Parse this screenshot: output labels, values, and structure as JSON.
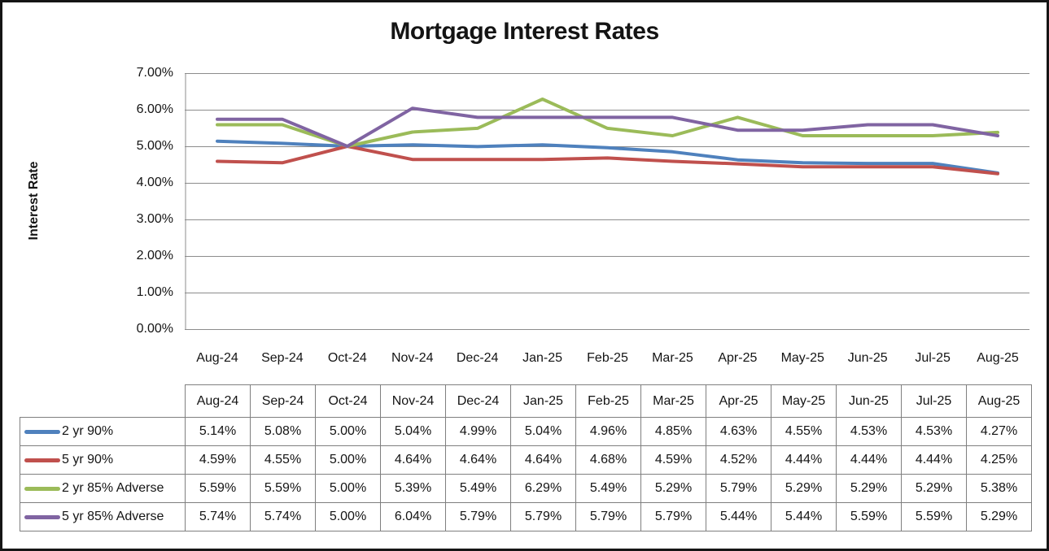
{
  "title": "Mortgage Interest Rates",
  "y_axis_title": "Interest Rate",
  "chart_data": {
    "type": "line",
    "title": "Mortgage Interest Rates",
    "xlabel": "",
    "ylabel": "Interest Rate",
    "ylim": [
      0,
      7
    ],
    "grid": true,
    "legend_position": "table-left-column",
    "value_format": "0.00%",
    "y_ticks": [
      "7.00%",
      "6.00%",
      "5.00%",
      "4.00%",
      "3.00%",
      "2.00%",
      "1.00%",
      "0.00%"
    ],
    "categories": [
      "Aug-24",
      "Sep-24",
      "Oct-24",
      "Nov-24",
      "Dec-24",
      "Jan-25",
      "Feb-25",
      "Mar-25",
      "Apr-25",
      "May-25",
      "Jun-25",
      "Jul-25",
      "Aug-25"
    ],
    "series": [
      {
        "name": "2 yr 90%",
        "color": "#4F81BD",
        "values": [
          5.14,
          5.08,
          5.0,
          5.04,
          4.99,
          5.04,
          4.96,
          4.85,
          4.63,
          4.55,
          4.53,
          4.53,
          4.27
        ]
      },
      {
        "name": "5 yr 90%",
        "color": "#C0504D",
        "values": [
          4.59,
          4.55,
          5.0,
          4.64,
          4.64,
          4.64,
          4.68,
          4.59,
          4.52,
          4.44,
          4.44,
          4.44,
          4.25
        ]
      },
      {
        "name": "2 yr 85% Adverse",
        "color": "#9BBB59",
        "values": [
          5.59,
          5.59,
          5.0,
          5.39,
          5.49,
          6.29,
          5.49,
          5.29,
          5.79,
          5.29,
          5.29,
          5.29,
          5.38
        ]
      },
      {
        "name": "5 yr 85% Adverse",
        "color": "#8064A2",
        "values": [
          5.74,
          5.74,
          5.0,
          6.04,
          5.79,
          5.79,
          5.79,
          5.79,
          5.44,
          5.44,
          5.59,
          5.59,
          5.29
        ]
      }
    ],
    "colors": {
      "gridline": "#8c8c8c",
      "axis_line": "#8c8c8c",
      "table_border": "#7f7f7f",
      "text": "#141414"
    }
  }
}
